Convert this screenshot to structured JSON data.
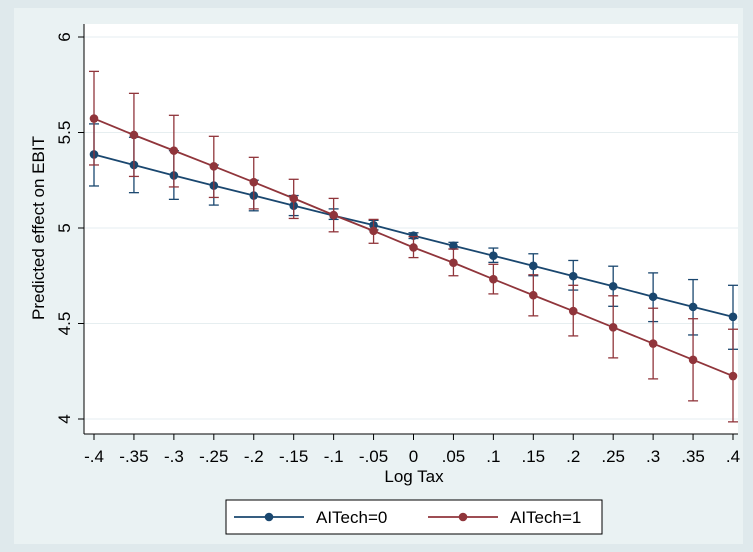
{
  "chart_data": {
    "type": "line",
    "title": "",
    "xlabel": "Log Tax",
    "ylabel": "Predicted effect on EBIT",
    "xlim": [
      -0.4,
      0.4
    ],
    "ylim": [
      4,
      6
    ],
    "x": [
      -0.4,
      -0.35,
      -0.3,
      -0.25,
      -0.2,
      -0.15,
      -0.1,
      -0.05,
      0,
      0.05,
      0.1,
      0.15,
      0.2,
      0.25,
      0.3,
      0.35,
      0.4
    ],
    "x_tick_labels": [
      "-.4",
      "-.35",
      "-.3",
      "-.25",
      "-.2",
      "-.15",
      "-.1",
      "-.05",
      "0",
      ".05",
      ".1",
      ".15",
      ".2",
      ".25",
      ".3",
      ".35",
      ".4"
    ],
    "y_ticks": [
      4,
      4.5,
      5,
      5.5,
      6
    ],
    "y_tick_labels": [
      "4",
      "4.5",
      "5",
      "5.5",
      "6"
    ],
    "grid": true,
    "legend_position": "bottom",
    "series": [
      {
        "name": "AITech=0",
        "color": "#1a476f",
        "values": [
          5.385,
          5.33,
          5.275,
          5.222,
          5.17,
          5.117,
          5.065,
          5.015,
          4.96,
          4.907,
          4.855,
          4.802,
          4.748,
          4.695,
          4.64,
          4.587,
          4.535
        ],
        "ci_low": [
          5.22,
          5.185,
          5.15,
          5.12,
          5.09,
          5.065,
          5.045,
          4.99,
          4.945,
          4.89,
          4.82,
          4.75,
          4.675,
          4.59,
          4.51,
          4.44,
          4.365
        ],
        "ci_high": [
          5.545,
          5.475,
          5.405,
          5.33,
          5.25,
          5.17,
          5.1,
          5.04,
          4.975,
          4.925,
          4.895,
          4.865,
          4.83,
          4.8,
          4.765,
          4.73,
          4.7
        ]
      },
      {
        "name": "AITech=1",
        "color": "#90353b",
        "values": [
          5.573,
          5.487,
          5.405,
          5.323,
          5.24,
          5.155,
          5.068,
          4.985,
          4.898,
          4.818,
          4.732,
          4.648,
          4.565,
          4.48,
          4.395,
          4.31,
          4.225
        ],
        "ci_low": [
          5.33,
          5.27,
          5.215,
          5.16,
          5.1,
          5.05,
          4.98,
          4.92,
          4.845,
          4.75,
          4.655,
          4.54,
          4.435,
          4.32,
          4.21,
          4.095,
          3.985
        ],
        "ci_high": [
          5.82,
          5.705,
          5.59,
          5.48,
          5.37,
          5.255,
          5.155,
          5.045,
          4.955,
          4.89,
          4.81,
          4.755,
          4.7,
          4.645,
          4.58,
          4.525,
          4.47
        ]
      }
    ]
  }
}
